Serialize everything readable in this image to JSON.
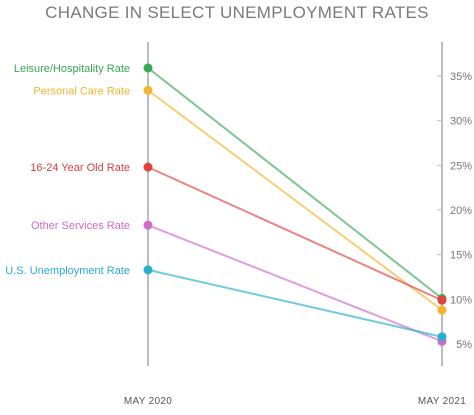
{
  "chart_data": {
    "type": "line",
    "title": "CHANGE IN SELECT UNEMPLOYMENT RATES",
    "categories": [
      "MAY 2020",
      "MAY 2021"
    ],
    "ylim": [
      0,
      40
    ],
    "yticks": [
      "5%",
      "10%",
      "15%",
      "20%",
      "25%",
      "30%",
      "35%"
    ],
    "ytick_values": [
      5,
      10,
      15,
      20,
      25,
      30,
      35
    ],
    "grid": false,
    "series": [
      {
        "name": "Leisure/Hospitality Rate",
        "values": [
          35.9,
          10.1
        ],
        "color": "#3aa856"
      },
      {
        "name": "Personal Care Rate",
        "values": [
          33.4,
          8.8
        ],
        "color": "#f2b531"
      },
      {
        "name": "16-24 Year Old Rate",
        "values": [
          24.8,
          9.9
        ],
        "color": "#e0403f"
      },
      {
        "name": "Other Services Rate",
        "values": [
          18.3,
          5.3
        ],
        "color": "#cf6cc8"
      },
      {
        "name": "U.S. Unemployment Rate",
        "values": [
          13.3,
          5.8
        ],
        "color": "#2aaecb"
      }
    ]
  }
}
